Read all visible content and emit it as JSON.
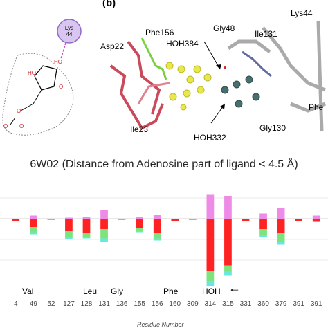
{
  "panel_b": {
    "label": "(b)",
    "labels": {
      "lys44_left": "Lys\n44",
      "phe156": "Phe156",
      "asp22": "Asp22",
      "hoh384": "HOH384",
      "gly48": "Gly48",
      "ile131": "Ile131",
      "lys44": "Lys44",
      "ile23": "Ile23",
      "hoh332": "HOH332",
      "gly130": "Gly130",
      "phe": "Phe"
    }
  },
  "chart_data": {
    "type": "bar",
    "title": "6W02 (Distance from Adenosine part of ligand < 4.5 Å)",
    "xlabel": "Residue Number",
    "categories": [
      "4",
      "49",
      "52",
      "127",
      "128",
      "131",
      "136",
      "155",
      "156",
      "160",
      "309",
      "314",
      "315",
      "331",
      "360",
      "379",
      "391",
      "391"
    ],
    "series": [
      {
        "color": "#ff2222",
        "values": [
          -2,
          -8,
          -1,
          -12,
          -14,
          -10,
          -1,
          -9,
          -14,
          -2,
          -1,
          -50,
          -45,
          -2,
          -10,
          -14,
          -2,
          -3
        ]
      },
      {
        "color": "#7de37d",
        "values": [
          0,
          -5,
          0,
          -6,
          -4,
          -9,
          0,
          -3,
          -5,
          0,
          0,
          -10,
          -6,
          0,
          -6,
          -8,
          0,
          0
        ]
      },
      {
        "color": "#66e8e0",
        "values": [
          0,
          -2,
          0,
          -2,
          -1,
          -3,
          0,
          -1,
          -2,
          0,
          0,
          -5,
          -4,
          0,
          -2,
          -3,
          0,
          0
        ]
      },
      {
        "color": "#ee8be6",
        "values": [
          0,
          3,
          0,
          1,
          2,
          8,
          0,
          2,
          4,
          0,
          0,
          23,
          22,
          0,
          5,
          10,
          0,
          3
        ]
      }
    ],
    "residue_names": [
      "Val",
      "Leu",
      "Gly",
      "Phe",
      "HOH"
    ],
    "arrow": "←"
  }
}
